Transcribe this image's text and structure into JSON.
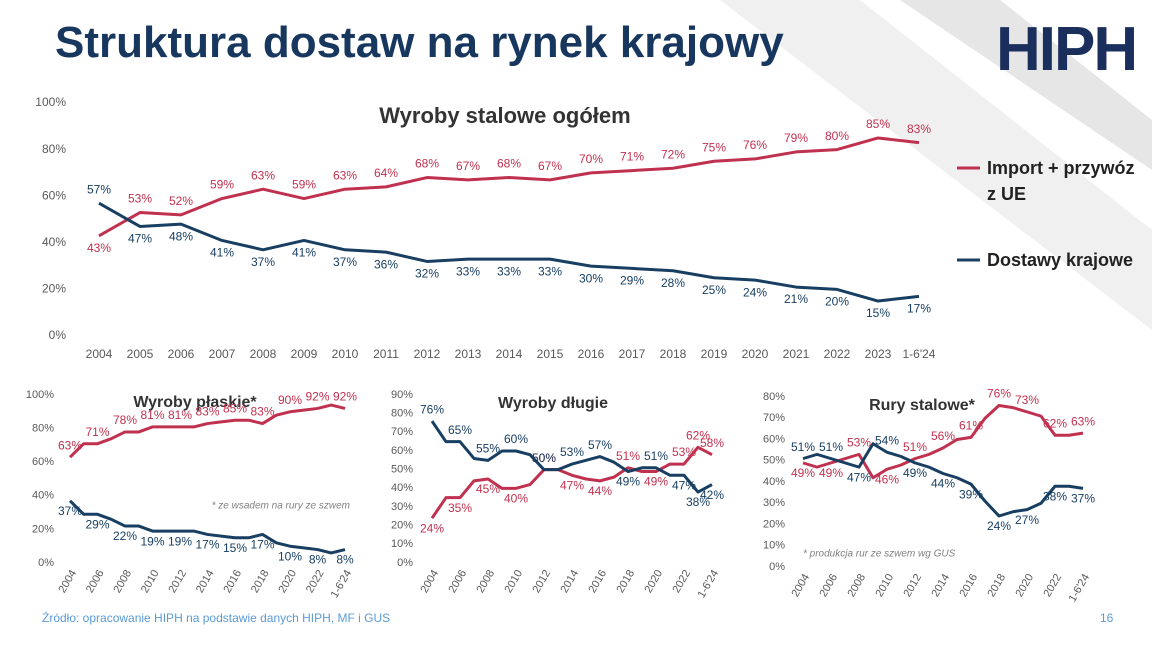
{
  "title": "Struktura dostaw na rynek krajowy",
  "logo": "HIPH",
  "source": "Źródło: opracowanie HIPH na podstawie danych HIPH, MF i GUS",
  "page": "16",
  "chart_data": [
    {
      "type": "line",
      "title": "Wyroby stalowe ogółem",
      "legend": "right",
      "grid": false,
      "categories": [
        "2004",
        "2005",
        "2006",
        "2007",
        "2008",
        "2009",
        "2010",
        "2011",
        "2012",
        "2013",
        "2014",
        "2015",
        "2016",
        "2017",
        "2018",
        "2019",
        "2020",
        "2021",
        "2022",
        "2023",
        "1-6'24"
      ],
      "ylim": [
        0,
        100
      ],
      "yticks": [
        {
          "value": 0,
          "label": "0%"
        },
        {
          "value": 20,
          "label": "20%"
        },
        {
          "value": 40,
          "label": "40%"
        },
        {
          "value": 60,
          "label": "60%"
        },
        {
          "value": 80,
          "label": "80%"
        },
        {
          "value": 100,
          "label": "100%"
        }
      ],
      "series": [
        {
          "name": "Import + przywóz z UE",
          "color": "#c0314f",
          "values": [
            43,
            53,
            52,
            59,
            63,
            59,
            63,
            64,
            68,
            67,
            68,
            67,
            70,
            71,
            72,
            75,
            76,
            79,
            80,
            85,
            83
          ],
          "value_labels": [
            "43%",
            "53%",
            "52%",
            "59%",
            "63%",
            "59%",
            "63%",
            "64%",
            "68%",
            "67%",
            "68%",
            "67%",
            "70%",
            "71%",
            "72%",
            "75%",
            "76%",
            "79%",
            "80%",
            "85%",
            "83%"
          ]
        },
        {
          "name": "Dostawy krajowe",
          "color": "#183f62",
          "values": [
            57,
            47,
            48,
            41,
            37,
            41,
            37,
            36,
            32,
            33,
            33,
            33,
            30,
            29,
            28,
            25,
            24,
            21,
            20,
            15,
            17
          ],
          "value_labels": [
            "57%",
            "47%",
            "48%",
            "41%",
            "37%",
            "41%",
            "37%",
            "36%",
            "32%",
            "33%",
            "33%",
            "33%",
            "30%",
            "29%",
            "28%",
            "25%",
            "24%",
            "21%",
            "20%",
            "15%",
            "17%"
          ]
        }
      ]
    },
    {
      "type": "line",
      "title": "Wyroby płaskie*",
      "note": "* ze wsadem na rury ze szwem",
      "grid": false,
      "categories": [
        "2004",
        null,
        "2006",
        null,
        "2008",
        null,
        "2010",
        null,
        "2012",
        null,
        "2014",
        null,
        "2016",
        null,
        "2018",
        null,
        "2020",
        null,
        "2022",
        null,
        "1-6'24"
      ],
      "ylim": [
        0,
        100
      ],
      "yticks": [
        {
          "value": 0,
          "label": "0%"
        },
        {
          "value": 20,
          "label": "20%"
        },
        {
          "value": 40,
          "label": "40%"
        },
        {
          "value": 60,
          "label": "60%"
        },
        {
          "value": 80,
          "label": "80%"
        },
        {
          "value": 100,
          "label": "100%"
        }
      ],
      "series": [
        {
          "color": "#c0314f",
          "values": [
            63,
            71,
            71,
            74,
            78,
            78,
            81,
            81,
            81,
            81,
            83,
            84,
            85,
            85,
            83,
            88,
            90,
            91,
            92,
            94,
            92
          ],
          "value_labels": [
            "63%",
            null,
            "71%",
            null,
            "78%",
            null,
            "81%",
            null,
            "81%",
            null,
            "83%",
            null,
            "85%",
            null,
            "83%",
            null,
            "90%",
            null,
            "92%",
            null,
            "92%"
          ]
        },
        {
          "color": "#183f62",
          "values": [
            37,
            29,
            29,
            26,
            22,
            22,
            19,
            19,
            19,
            19,
            17,
            16,
            15,
            15,
            17,
            12,
            10,
            9,
            8,
            6,
            8
          ],
          "value_labels": [
            "37%",
            null,
            "29%",
            null,
            "22%",
            null,
            "19%",
            null,
            "19%",
            null,
            "17%",
            null,
            "15%",
            null,
            "17%",
            null,
            "10%",
            null,
            "8%",
            null,
            "8%"
          ]
        }
      ]
    },
    {
      "type": "line",
      "title": "Wyroby długie",
      "grid": false,
      "categories": [
        "2004",
        null,
        "2006",
        null,
        "2008",
        null,
        "2010",
        null,
        "2012",
        null,
        "2014",
        null,
        "2016",
        null,
        "2018",
        null,
        "2020",
        null,
        "2022",
        null,
        "1-6'24"
      ],
      "ylim": [
        0,
        90
      ],
      "yticks": [
        {
          "value": 0,
          "label": "0%"
        },
        {
          "value": 10,
          "label": "10%"
        },
        {
          "value": 20,
          "label": "20%"
        },
        {
          "value": 30,
          "label": "30%"
        },
        {
          "value": 40,
          "label": "40%"
        },
        {
          "value": 50,
          "label": "50%"
        },
        {
          "value": 60,
          "label": "60%"
        },
        {
          "value": 70,
          "label": "70%"
        },
        {
          "value": 80,
          "label": "80%"
        },
        {
          "value": 90,
          "label": "90%"
        }
      ],
      "series": [
        {
          "color": "#c0314f",
          "values": [
            24,
            35,
            35,
            44,
            45,
            40,
            40,
            42,
            50,
            50,
            47,
            45,
            44,
            46,
            51,
            49,
            49,
            53,
            53,
            62,
            58
          ],
          "value_labels": [
            "24%",
            null,
            "35%",
            null,
            "45%",
            null,
            "40%",
            null,
            "50%",
            null,
            "47%",
            null,
            "44%",
            null,
            "51%",
            null,
            "49%",
            null,
            "53%",
            "62%",
            "58%"
          ]
        },
        {
          "color": "#183f62",
          "values": [
            76,
            65,
            65,
            56,
            55,
            60,
            60,
            58,
            50,
            50,
            53,
            55,
            57,
            54,
            49,
            51,
            51,
            47,
            47,
            38,
            42
          ],
          "value_labels": [
            "76%",
            null,
            "65%",
            null,
            "55%",
            null,
            "60%",
            null,
            "50%",
            null,
            "53%",
            null,
            "57%",
            null,
            "49%",
            null,
            "51%",
            null,
            "47%",
            "38%",
            "42%"
          ]
        }
      ]
    },
    {
      "type": "line",
      "title": "Rury stalowe*",
      "note": "* produkcja rur ze szwem wg GUS",
      "grid": false,
      "categories": [
        "2004",
        null,
        "2006",
        null,
        "2008",
        null,
        "2010",
        null,
        "2012",
        null,
        "2014",
        null,
        "2016",
        null,
        "2018",
        null,
        "2020",
        null,
        "2022",
        null,
        "1-6'24"
      ],
      "ylim": [
        0,
        80
      ],
      "yticks": [
        {
          "value": 0,
          "label": "0%"
        },
        {
          "value": 10,
          "label": "10%"
        },
        {
          "value": 20,
          "label": "20%"
        },
        {
          "value": 30,
          "label": "30%"
        },
        {
          "value": 40,
          "label": "40%"
        },
        {
          "value": 50,
          "label": "50%"
        },
        {
          "value": 60,
          "label": "60%"
        },
        {
          "value": 70,
          "label": "70%"
        },
        {
          "value": 80,
          "label": "80%"
        }
      ],
      "series": [
        {
          "color": "#c0314f",
          "values": [
            49,
            47,
            49,
            51,
            53,
            42,
            46,
            48,
            51,
            53,
            56,
            60,
            61,
            70,
            76,
            75,
            73,
            71,
            62,
            62,
            63
          ],
          "value_labels": [
            "49%",
            null,
            "49%",
            null,
            "53%",
            null,
            "46%",
            null,
            "51%",
            null,
            "56%",
            null,
            "61%",
            null,
            "76%",
            null,
            "73%",
            null,
            "62%",
            null,
            "63%"
          ]
        },
        {
          "color": "#183f62",
          "values": [
            51,
            53,
            51,
            49,
            47,
            58,
            54,
            52,
            49,
            47,
            44,
            42,
            39,
            31,
            24,
            26,
            27,
            30,
            38,
            38,
            37
          ],
          "value_labels": [
            "51%",
            null,
            "51%",
            null,
            "47%",
            null,
            "54%",
            null,
            "49%",
            null,
            "44%",
            null,
            "39%",
            null,
            "24%",
            null,
            "27%",
            null,
            "38%",
            null,
            "37%"
          ]
        }
      ]
    }
  ]
}
